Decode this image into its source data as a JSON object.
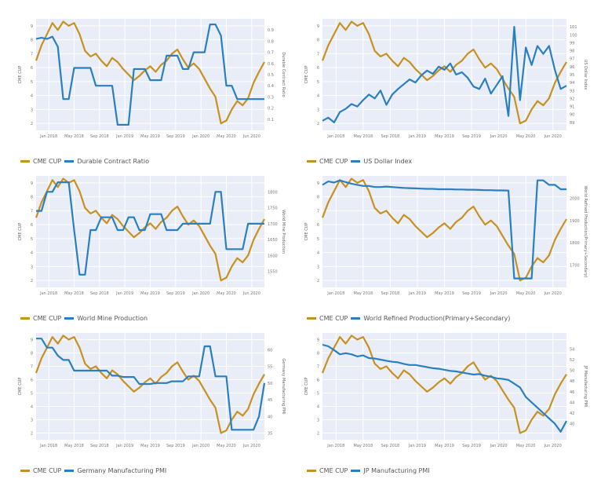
{
  "colors": {
    "plot_bg": "#e9edf7",
    "grid": "#ffffff",
    "copper": "#c8911f",
    "indicator": "#2a7fbf"
  },
  "chart_data": [
    {
      "type": "line",
      "id": "p1",
      "left_label": "CME CUP",
      "right_label": "Durable Contract Ratio",
      "x_ticks": [
        "Jan 2018",
        "May 2018",
        "Sep 2018",
        "Jan 2019",
        "May 2019",
        "Sep 2019",
        "Jan 2020",
        "May 2020",
        "Jun 2020"
      ],
      "y_left": {
        "range": [
          1.5,
          9.5
        ],
        "ticks": [
          "2",
          "3",
          "4",
          "5",
          "6",
          "7",
          "8",
          "9"
        ]
      },
      "y_right": {
        "range": [
          0,
          1
        ],
        "ticks": [
          "0.1",
          "0.2",
          "0.3",
          "0.4",
          "0.5",
          "0.6",
          "0.7",
          "0.8",
          "0.9"
        ]
      },
      "legend": [
        "CME CUP",
        "Durable Contract Ratio"
      ],
      "series": [
        {
          "name": "CME CUP",
          "axis": "left",
          "values": [
            6.5,
            7.6,
            8.4,
            9.2,
            8.7,
            9.3,
            9.0,
            9.2,
            8.4,
            7.2,
            6.8,
            7.0,
            6.5,
            6.1,
            6.7,
            6.4,
            5.9,
            5.5,
            5.1,
            5.4,
            5.8,
            6.1,
            5.7,
            6.2,
            6.5,
            7.0,
            7.3,
            6.6,
            6.0,
            6.3,
            5.9,
            5.2,
            4.5,
            3.9,
            2.0,
            2.2,
            3.0,
            3.6,
            3.3,
            3.8,
            4.9,
            5.7,
            6.4
          ]
        },
        {
          "name": "Durable Contract Ratio",
          "axis": "right",
          "values": [
            0.82,
            0.83,
            0.82,
            0.84,
            0.75,
            0.28,
            0.28,
            0.56,
            0.56,
            0.56,
            0.56,
            0.4,
            0.4,
            0.4,
            0.4,
            0.05,
            0.05,
            0.05,
            0.55,
            0.55,
            0.55,
            0.45,
            0.45,
            0.45,
            0.67,
            0.67,
            0.67,
            0.55,
            0.55,
            0.7,
            0.7,
            0.7,
            0.95,
            0.95,
            0.85,
            0.4,
            0.4,
            0.28,
            0.28,
            0.28,
            0.28,
            0.28,
            0.28
          ]
        }
      ]
    },
    {
      "type": "line",
      "id": "p2",
      "left_label": "CME CUP",
      "right_label": "US Dollar Index",
      "x_ticks": [
        "Jan 2018",
        "May 2018",
        "Sep 2018",
        "Jan 2019",
        "May 2019",
        "Sep 2019",
        "Jan 2020",
        "May 2020",
        "Jun 2020"
      ],
      "y_left": {
        "range": [
          1.5,
          9.5
        ],
        "ticks": [
          "2",
          "3",
          "4",
          "5",
          "6",
          "7",
          "8",
          "9"
        ]
      },
      "y_right": {
        "range": [
          88,
          102
        ],
        "ticks": [
          "89",
          "90",
          "91",
          "92",
          "93",
          "94",
          "95",
          "96",
          "97",
          "98",
          "99",
          "100",
          "101"
        ]
      },
      "legend": [
        "CME CUP",
        "US Dollar Index"
      ],
      "series": [
        {
          "name": "CME CUP",
          "axis": "left",
          "values": [
            6.5,
            7.6,
            8.4,
            9.2,
            8.7,
            9.3,
            9.0,
            9.2,
            8.4,
            7.2,
            6.8,
            7.0,
            6.5,
            6.1,
            6.7,
            6.4,
            5.9,
            5.5,
            5.1,
            5.4,
            5.8,
            6.1,
            5.7,
            6.2,
            6.5,
            7.0,
            7.3,
            6.6,
            6.0,
            6.3,
            5.9,
            5.2,
            4.5,
            3.9,
            2.0,
            2.2,
            3.0,
            3.6,
            3.3,
            3.8,
            4.9,
            5.7,
            6.4
          ]
        },
        {
          "name": "US Dollar Index",
          "axis": "right",
          "values": [
            89.2,
            89.6,
            89.0,
            90.3,
            90.7,
            91.3,
            91.0,
            91.8,
            92.5,
            92.0,
            93.0,
            91.2,
            92.5,
            93.2,
            93.8,
            94.4,
            94.0,
            94.9,
            95.5,
            95.1,
            96.0,
            95.6,
            96.4,
            95.0,
            95.3,
            94.6,
            93.5,
            93.2,
            94.5,
            92.6,
            93.7,
            94.8,
            89.8,
            101.0,
            91.8,
            98.4,
            96.2,
            98.6,
            97.6,
            98.6,
            95.6,
            93.2,
            93.6
          ]
        }
      ]
    },
    {
      "type": "line",
      "id": "p3",
      "left_label": "CME CUP",
      "right_label": "World Mine Production",
      "x_ticks": [
        "Jan 2018",
        "May 2018",
        "Sep 2018",
        "Jan 2019",
        "May 2019",
        "Sep 2019",
        "Jan 2020",
        "May 2020",
        "Jun 2020"
      ],
      "y_left": {
        "range": [
          1.5,
          9.5
        ],
        "ticks": [
          "2",
          "3",
          "4",
          "5",
          "6",
          "7",
          "8",
          "9"
        ]
      },
      "y_right": {
        "range": [
          1500,
          1850
        ],
        "ticks": [
          "1550",
          "1600",
          "1650",
          "1700",
          "1750",
          "1800"
        ]
      },
      "legend": [
        "CME CUP",
        "World Mine Production"
      ],
      "series": [
        {
          "name": "CME CUP",
          "axis": "left",
          "values": [
            6.5,
            7.6,
            8.4,
            9.2,
            8.7,
            9.3,
            9.0,
            9.2,
            8.4,
            7.2,
            6.8,
            7.0,
            6.5,
            6.1,
            6.7,
            6.4,
            5.9,
            5.5,
            5.1,
            5.4,
            5.8,
            6.1,
            5.7,
            6.2,
            6.5,
            7.0,
            7.3,
            6.6,
            6.0,
            6.3,
            5.9,
            5.2,
            4.5,
            3.9,
            2.0,
            2.2,
            3.0,
            3.6,
            3.3,
            3.8,
            4.9,
            5.7,
            6.4
          ]
        },
        {
          "name": "World Mine Production",
          "axis": "right",
          "values": [
            1740,
            1740,
            1800,
            1800,
            1830,
            1830,
            1830,
            1680,
            1540,
            1540,
            1680,
            1680,
            1720,
            1720,
            1720,
            1680,
            1680,
            1720,
            1720,
            1680,
            1680,
            1730,
            1730,
            1730,
            1680,
            1680,
            1680,
            1700,
            1700,
            1700,
            1700,
            1700,
            1700,
            1800,
            1800,
            1620,
            1620,
            1620,
            1620,
            1700,
            1700,
            1700,
            1700
          ]
        }
      ]
    },
    {
      "type": "line",
      "id": "p4",
      "left_label": "CME CUP",
      "right_label": "World Refined Production(Primary+Secondary)",
      "x_ticks": [
        "Jan 2018",
        "May 2018",
        "Sep 2018",
        "Jan 2019",
        "May 2019",
        "Sep 2019",
        "Jan 2020",
        "May 2020",
        "Jun 2020"
      ],
      "y_left": {
        "range": [
          1.5,
          9.5
        ],
        "ticks": [
          "2",
          "3",
          "4",
          "5",
          "6",
          "7",
          "8",
          "9"
        ]
      },
      "y_right": {
        "range": [
          1600,
          2100
        ],
        "ticks": [
          "1700",
          "1800",
          "1900",
          "2000"
        ]
      },
      "legend": [
        "CME CUP",
        "World Refined Production(Primary+Secondary)"
      ],
      "series": [
        {
          "name": "CME CUP",
          "axis": "left",
          "values": [
            6.5,
            7.6,
            8.4,
            9.2,
            8.7,
            9.3,
            9.0,
            9.2,
            8.4,
            7.2,
            6.8,
            7.0,
            6.5,
            6.1,
            6.7,
            6.4,
            5.9,
            5.5,
            5.1,
            5.4,
            5.8,
            6.1,
            5.7,
            6.2,
            6.5,
            7.0,
            7.3,
            6.6,
            6.0,
            6.3,
            5.9,
            5.2,
            4.5,
            3.9,
            2.0,
            2.2,
            3.0,
            3.6,
            3.3,
            3.8,
            4.9,
            5.7,
            6.4
          ]
        },
        {
          "name": "World Refined Production(Primary+Secondary)",
          "axis": "right",
          "values": [
            2060,
            2075,
            2070,
            2080,
            2072,
            2065,
            2060,
            2055,
            2055,
            2050,
            2050,
            2052,
            2050,
            2048,
            2046,
            2045,
            2044,
            2043,
            2042,
            2042,
            2040,
            2040,
            2040,
            2039,
            2039,
            2038,
            2038,
            2037,
            2036,
            2036,
            2035,
            2035,
            2034,
            1640,
            1640,
            1640,
            1640,
            2080,
            2080,
            2060,
            2060,
            2040,
            2040
          ]
        }
      ]
    },
    {
      "type": "line",
      "id": "p5",
      "left_label": "CME CUP",
      "right_label": "Germany Manufacturing PMI",
      "x_ticks": [
        "Jan 2018",
        "May 2018",
        "Sep 2018",
        "Jan 2019",
        "May 2019",
        "Sep 2019",
        "Jan 2020",
        "May 2020",
        "Jun 2020"
      ],
      "y_left": {
        "range": [
          1.5,
          9.5
        ],
        "ticks": [
          "2",
          "3",
          "4",
          "5",
          "6",
          "7",
          "8",
          "9"
        ]
      },
      "y_right": {
        "range": [
          33,
          65
        ],
        "ticks": [
          "35",
          "40",
          "45",
          "50",
          "55",
          "60"
        ]
      },
      "legend": [
        "CME CUP",
        "Germany Manufacturing PMI"
      ],
      "series": [
        {
          "name": "CME CUP",
          "axis": "left",
          "values": [
            6.5,
            7.6,
            8.4,
            9.2,
            8.7,
            9.3,
            9.0,
            9.2,
            8.4,
            7.2,
            6.8,
            7.0,
            6.5,
            6.1,
            6.7,
            6.4,
            5.9,
            5.5,
            5.1,
            5.4,
            5.8,
            6.1,
            5.7,
            6.2,
            6.5,
            7.0,
            7.3,
            6.6,
            6.0,
            6.3,
            5.9,
            5.2,
            4.5,
            3.9,
            2.0,
            2.2,
            3.0,
            3.6,
            3.3,
            3.8,
            4.9,
            5.7,
            6.4
          ]
        },
        {
          "name": "Germany Manufacturing PMI",
          "axis": "right",
          "values": [
            63.3,
            63.3,
            60.6,
            60.6,
            58.2,
            56.9,
            56.9,
            53.7,
            53.7,
            53.7,
            53.7,
            53.7,
            53.7,
            53.7,
            52.2,
            52.2,
            51.8,
            51.8,
            51.8,
            49.7,
            49.7,
            49.7,
            50.0,
            50.0,
            50.0,
            50.5,
            50.5,
            50.5,
            52.0,
            52.0,
            52.0,
            61.0,
            61.0,
            52.0,
            52.0,
            52.0,
            36.0,
            36.0,
            36.0,
            36.0,
            36.0,
            40.0,
            50.0
          ]
        }
      ]
    },
    {
      "type": "line",
      "id": "p6",
      "left_label": "CME CUP",
      "right_label": "JP Manufacturing PMI",
      "x_ticks": [
        "Jan 2018",
        "May 2018",
        "Sep 2018",
        "Jan 2019",
        "May 2019",
        "Sep 2019",
        "Jan 2020",
        "May 2020",
        "Jun 2020"
      ],
      "y_left": {
        "range": [
          1.5,
          9.5
        ],
        "ticks": [
          "2",
          "3",
          "4",
          "5",
          "6",
          "7",
          "8",
          "9"
        ]
      },
      "y_right": {
        "range": [
          37,
          57
        ],
        "ticks": [
          "40",
          "42",
          "44",
          "46",
          "48",
          "50",
          "52",
          "54"
        ]
      },
      "legend": [
        "CME CUP",
        "JP Manufacturing PMI"
      ],
      "series": [
        {
          "name": "CME CUP",
          "axis": "left",
          "values": [
            6.5,
            7.6,
            8.4,
            9.2,
            8.7,
            9.3,
            9.0,
            9.2,
            8.4,
            7.2,
            6.8,
            7.0,
            6.5,
            6.1,
            6.7,
            6.4,
            5.9,
            5.5,
            5.1,
            5.4,
            5.8,
            6.1,
            5.7,
            6.2,
            6.5,
            7.0,
            7.3,
            6.6,
            6.0,
            6.3,
            5.9,
            5.2,
            4.5,
            3.9,
            2.0,
            2.2,
            3.0,
            3.6,
            3.3,
            3.8,
            4.9,
            5.7,
            6.4
          ]
        },
        {
          "name": "JP Manufacturing PMI",
          "axis": "right",
          "values": [
            54.8,
            54.5,
            53.8,
            53.0,
            53.2,
            53.0,
            52.6,
            52.8,
            52.3,
            52.2,
            52.0,
            51.8,
            51.6,
            51.5,
            51.2,
            51.0,
            51.0,
            50.8,
            50.6,
            50.4,
            50.3,
            50.1,
            49.9,
            49.8,
            49.6,
            49.4,
            49.2,
            49.3,
            49.0,
            48.8,
            48.5,
            48.4,
            48.2,
            47.5,
            46.8,
            45.0,
            44.0,
            43.0,
            42.0,
            41.0,
            40.0,
            38.5,
            40.5
          ]
        }
      ]
    }
  ]
}
